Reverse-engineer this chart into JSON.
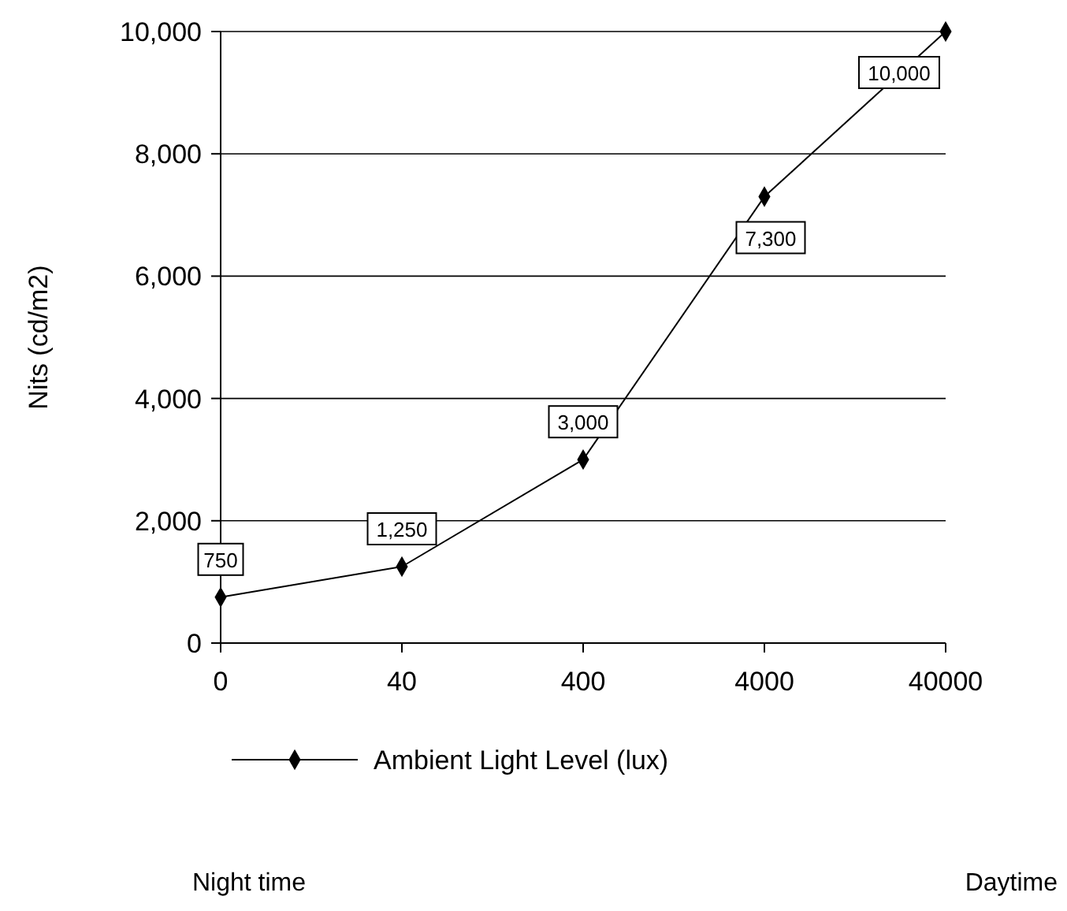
{
  "chart_data": {
    "type": "line",
    "ylabel": "Nits (cd/m2)",
    "categories": [
      "0",
      "40",
      "400",
      "4000",
      "40000"
    ],
    "series": [
      {
        "name": "Ambient Light Level (lux)",
        "color": "#000000",
        "values": [
          750,
          1250,
          3000,
          7300,
          10000
        ],
        "value_labels": [
          "750",
          "1,250",
          "3,000",
          "7,300",
          "10,000"
        ]
      }
    ],
    "ylim": [
      0,
      10000
    ],
    "yticks": [
      {
        "value": 0,
        "label": "0"
      },
      {
        "value": 2000,
        "label": "2,000"
      },
      {
        "value": 4000,
        "label": "4,000"
      },
      {
        "value": 6000,
        "label": "6,000"
      },
      {
        "value": 8000,
        "label": "8,000"
      },
      {
        "value": 10000,
        "label": "10,000"
      }
    ],
    "grid": "y",
    "legend": "bottom",
    "marker": "diamond",
    "line_style": "solid",
    "annotations": [
      "Night time",
      "Daytime"
    ]
  }
}
